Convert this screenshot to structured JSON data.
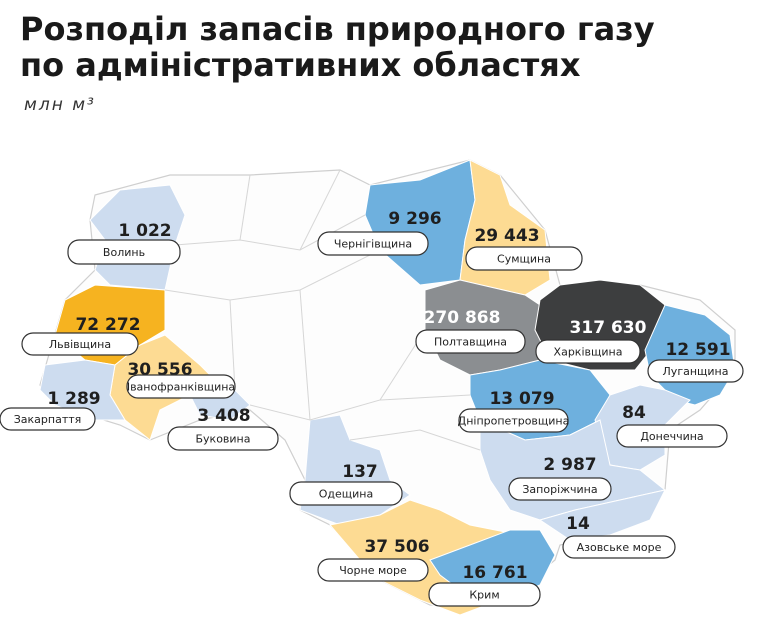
{
  "title_lines": [
    "Розподіл запасів природного газу",
    "по адміністративних областях"
  ],
  "unit": "млн м³",
  "regions": [
    {
      "name": "Волинь",
      "value": "1 022",
      "color": "#cddcef"
    },
    {
      "name": "Львівщина",
      "value": "72 272",
      "color": "#f6b320"
    },
    {
      "name": "Іванофранківщина",
      "value": "30 556",
      "color": "#fddb93"
    },
    {
      "name": "Закарпаття",
      "value": "1 289",
      "color": "#cddcef"
    },
    {
      "name": "Буковина",
      "value": "3 408",
      "color": "#cddcef"
    },
    {
      "name": "Чернігівщина",
      "value": "9 296",
      "color": "#6eb0de"
    },
    {
      "name": "Сумщина",
      "value": "29 443",
      "color": "#fddb93"
    },
    {
      "name": "Полтавщина",
      "value": "270 868",
      "color": "#8b8e91"
    },
    {
      "name": "Харківщина",
      "value": "317 630",
      "color": "#3d3e3f"
    },
    {
      "name": "Луганщина",
      "value": "12 591",
      "color": "#6eb0de"
    },
    {
      "name": "Дніпропетровщина",
      "value": "13 079",
      "color": "#6eb0de"
    },
    {
      "name": "Донеччина",
      "value": "84",
      "color": "#cddcef"
    },
    {
      "name": "Запоріжчина",
      "value": "2 987",
      "color": "#cddcef"
    },
    {
      "name": "Одещина",
      "value": "137",
      "color": "#cddcef"
    },
    {
      "name": "Азовське море",
      "value": "14",
      "color": "#cddcef"
    },
    {
      "name": "Чорне море",
      "value": "37 506",
      "color": "#fddb93"
    },
    {
      "name": "Крим",
      "value": "16 761",
      "color": "#6eb0de"
    }
  ]
}
